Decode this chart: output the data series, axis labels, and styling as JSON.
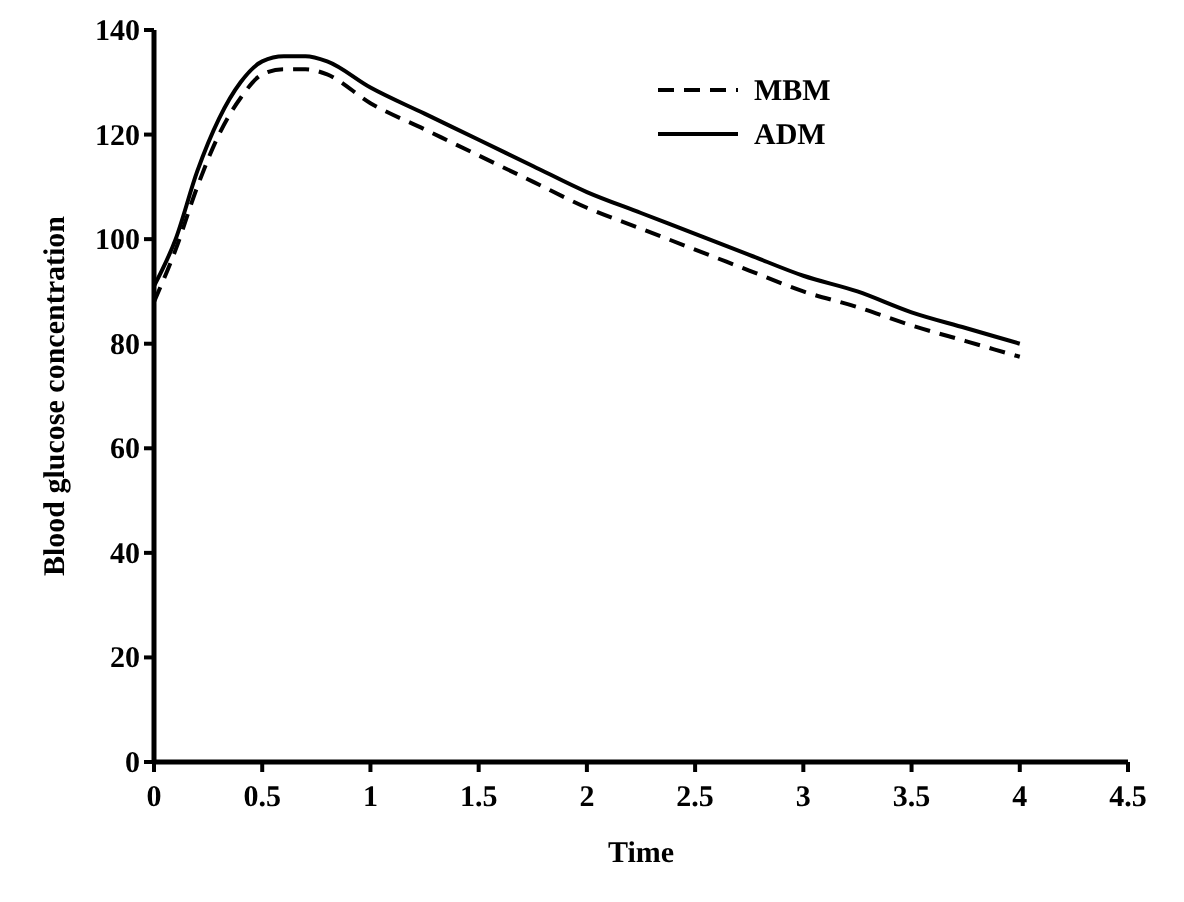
{
  "chart_data": {
    "type": "line",
    "xlabel": "Time",
    "ylabel": "Blood glucose concentration",
    "xlim": [
      0,
      4.5
    ],
    "ylim": [
      0,
      140
    ],
    "xticks": [
      0,
      0.5,
      1,
      1.5,
      2,
      2.5,
      3,
      3.5,
      4,
      4.5
    ],
    "yticks": [
      0,
      20,
      40,
      60,
      80,
      100,
      120,
      140
    ],
    "grid": false,
    "legend": "top right",
    "x": [
      0,
      0.1,
      0.2,
      0.3,
      0.4,
      0.5,
      0.6,
      0.7,
      0.8,
      1,
      1.25,
      1.5,
      1.75,
      2,
      2.25,
      2.5,
      2.75,
      3,
      3.25,
      3.5,
      3.75,
      4
    ],
    "series": [
      {
        "name": "MBM",
        "color": "#000000",
        "line_style": "dashed",
        "values": [
          88,
          98,
          110,
          120,
          127,
          131.5,
          132.5,
          132.5,
          131.5,
          126,
          121,
          116,
          111,
          106,
          102,
          98,
          94,
          90,
          87,
          83.5,
          80.5,
          77.5
        ]
      },
      {
        "name": "ADM",
        "color": "#000000",
        "line_style": "solid",
        "values": [
          91,
          100,
          113,
          123,
          130,
          134,
          135,
          135,
          134,
          129,
          124,
          119,
          114,
          109,
          105,
          101,
          97,
          93,
          90,
          86,
          83,
          80
        ]
      }
    ]
  }
}
